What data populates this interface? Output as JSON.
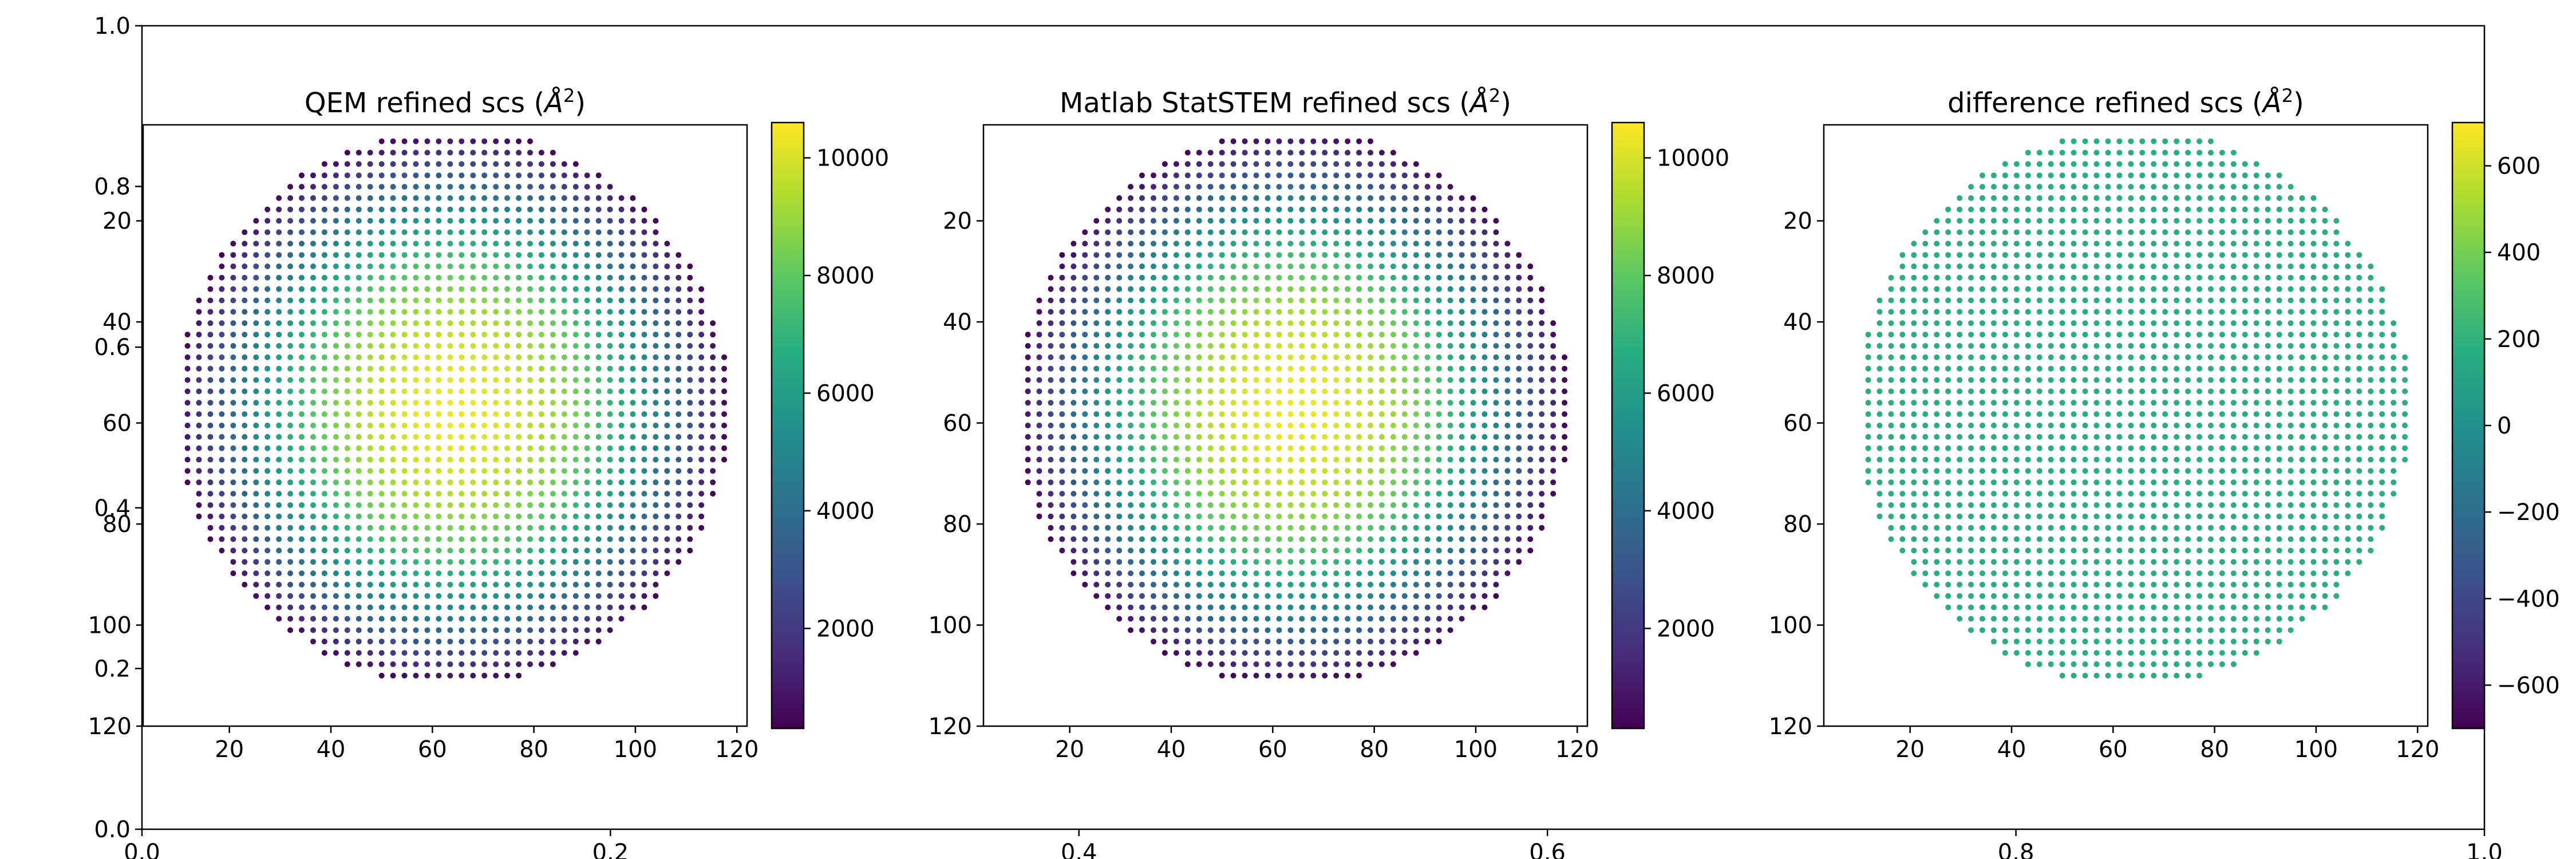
{
  "figure": {
    "background_axes": {
      "xlim": [
        0.0,
        1.0
      ],
      "ylim": [
        0.0,
        1.0
      ],
      "xticks": [
        "0.0",
        "0.2",
        "0.4",
        "0.6",
        "0.8",
        "1.0"
      ],
      "yticks": [
        "0.0",
        "0.2",
        "0.4",
        "0.6",
        "0.8",
        "1.0"
      ]
    }
  },
  "chart_data": [
    {
      "type": "scatter",
      "title": "QEM refined scs (Å²)",
      "title_text": "QEM refined scs (",
      "title_unit_base": "Å",
      "title_unit_exp": "2",
      "title_close": ")",
      "xlim": [
        3,
        122
      ],
      "ylim": [
        120,
        1
      ],
      "xticks": [
        "20",
        "40",
        "60",
        "80",
        "100",
        "120"
      ],
      "yticks": [
        "20",
        "40",
        "60",
        "80",
        "100",
        "120"
      ],
      "colormap": "viridis",
      "colorbar": {
        "min": 300,
        "max": 10600,
        "ticks": [
          "2000",
          "4000",
          "6000",
          "8000",
          "10000"
        ]
      },
      "points": {
        "shape": "circular disk",
        "center": [
          64,
          57
        ],
        "radius_x": 54.5,
        "radius_y": 55,
        "spacing": 2.25,
        "value_center": 10400,
        "value_edge": 300
      }
    },
    {
      "type": "scatter",
      "title": "Matlab StatSTEM refined scs (Å²)",
      "title_text": "Matlab StatSTEM refined scs (",
      "title_unit_base": "Å",
      "title_unit_exp": "2",
      "title_close": ")",
      "xlim": [
        3,
        122
      ],
      "ylim": [
        120,
        1
      ],
      "xticks": [
        "20",
        "40",
        "60",
        "80",
        "100",
        "120"
      ],
      "yticks": [
        "20",
        "40",
        "60",
        "80",
        "100",
        "120"
      ],
      "colormap": "viridis",
      "colorbar": {
        "min": 300,
        "max": 10600,
        "ticks": [
          "2000",
          "4000",
          "6000",
          "8000",
          "10000"
        ]
      },
      "points": {
        "shape": "circular disk",
        "center": [
          64,
          57
        ],
        "radius_x": 54.5,
        "radius_y": 55,
        "spacing": 2.25,
        "value_center": 10400,
        "value_edge": 300
      }
    },
    {
      "type": "scatter",
      "title": "difference refined scs (Å²)",
      "title_text": "difference refined scs (",
      "title_unit_base": "Å",
      "title_unit_exp": "2",
      "title_close": ")",
      "xlim": [
        3,
        122
      ],
      "ylim": [
        120,
        1
      ],
      "xticks": [
        "20",
        "40",
        "60",
        "80",
        "100",
        "120"
      ],
      "yticks": [
        "20",
        "40",
        "60",
        "80",
        "100",
        "120"
      ],
      "colormap": "viridis",
      "colorbar": {
        "min": -700,
        "max": 700,
        "ticks": [
          "−600",
          "−400",
          "−200",
          "0",
          "200",
          "400",
          "600"
        ]
      },
      "points": {
        "shape": "circular disk",
        "center": [
          64,
          57
        ],
        "radius_x": 54.5,
        "radius_y": 55,
        "spacing": 2.25,
        "value_center": 180,
        "value_edge": 180
      }
    }
  ]
}
